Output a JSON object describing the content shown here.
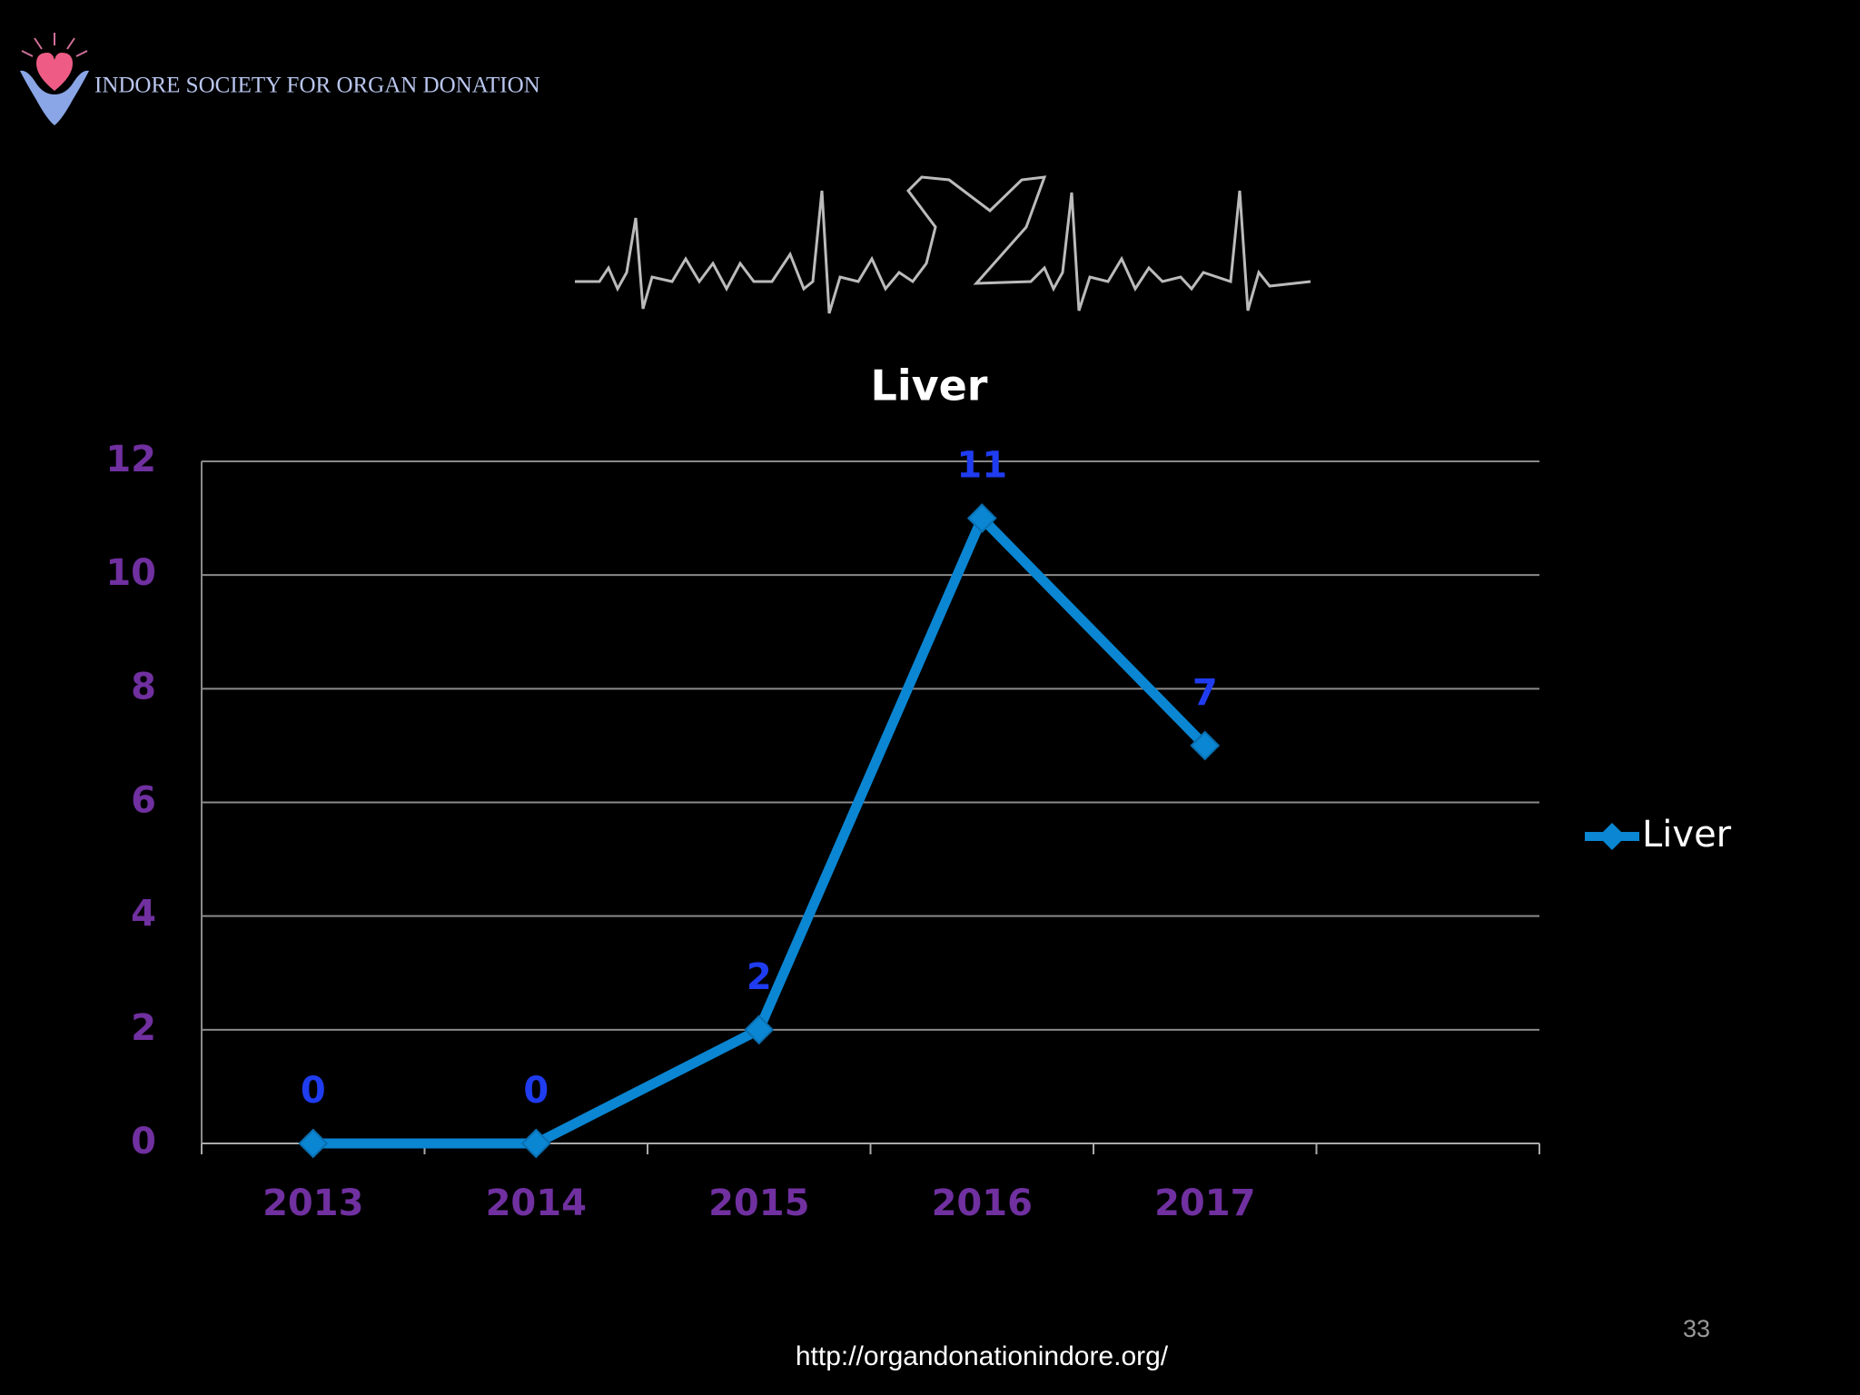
{
  "header": {
    "title": "INDORE SOCIETY FOR ORGAN DONATION"
  },
  "footer": {
    "url": "http://organdonationindore.org/",
    "page_number": "33"
  },
  "chart_data": {
    "type": "line",
    "title": "Liver",
    "categories": [
      "2013",
      "2014",
      "2015",
      "2016",
      "2017",
      null
    ],
    "series": [
      {
        "name": "Liver",
        "color": "#0a86d2",
        "values": [
          0,
          0,
          2,
          11,
          7,
          null
        ]
      }
    ],
    "ylim": [
      0,
      12
    ],
    "yticks": [
      0,
      2,
      4,
      6,
      8,
      10,
      12
    ],
    "grid": true,
    "legend": "right"
  }
}
